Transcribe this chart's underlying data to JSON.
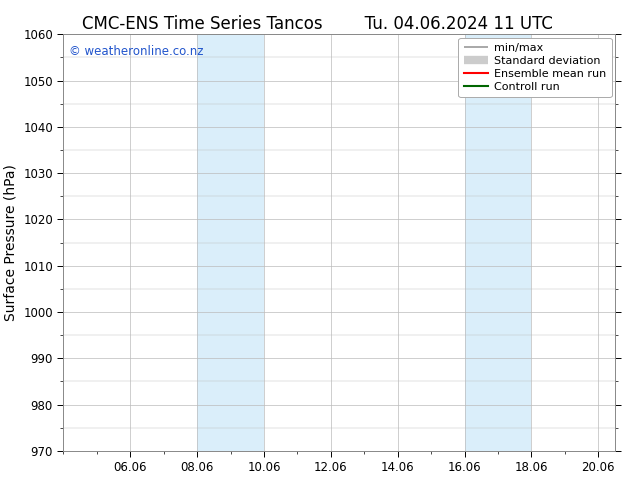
{
  "title_left": "CMC-ENS Time Series Tancos",
  "title_right": "Tu. 04.06.2024 11 UTC",
  "ylabel": "Surface Pressure (hPa)",
  "ylim": [
    970,
    1060
  ],
  "yticks": [
    970,
    980,
    990,
    1000,
    1010,
    1020,
    1030,
    1040,
    1050,
    1060
  ],
  "xlim": [
    0.0,
    16.5
  ],
  "xtick_labels": [
    "06.06",
    "08.06",
    "10.06",
    "12.06",
    "14.06",
    "16.06",
    "18.06",
    "20.06"
  ],
  "xtick_positions": [
    2.0,
    4.0,
    6.0,
    8.0,
    10.0,
    12.0,
    14.0,
    16.0
  ],
  "shaded_regions": [
    {
      "x_start": 4.0,
      "x_end": 6.0,
      "color": "#daeefa"
    },
    {
      "x_start": 12.0,
      "x_end": 14.0,
      "color": "#daeefa"
    }
  ],
  "watermark": "© weatheronline.co.nz",
  "watermark_color": "#2255cc",
  "background_color": "#ffffff",
  "plot_bg_color": "#ffffff",
  "grid_color": "#bbbbbb",
  "legend_items": [
    {
      "label": "min/max",
      "color": "#999999",
      "lw": 1.2
    },
    {
      "label": "Standard deviation",
      "color": "#cccccc",
      "lw": 6
    },
    {
      "label": "Ensemble mean run",
      "color": "#ff0000",
      "lw": 1.5
    },
    {
      "label": "Controll run",
      "color": "#006600",
      "lw": 1.5
    }
  ],
  "title_fontsize": 12,
  "axis_label_fontsize": 10,
  "tick_fontsize": 8.5,
  "watermark_fontsize": 8.5,
  "legend_fontsize": 8
}
